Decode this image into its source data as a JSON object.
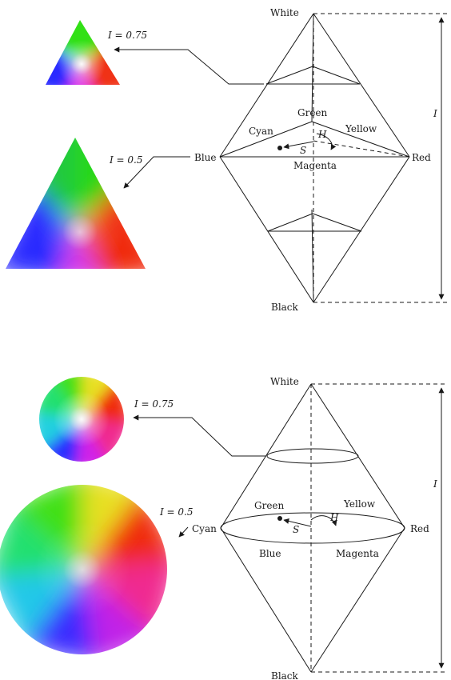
{
  "top_diagram": {
    "vertex_labels": {
      "white": "White",
      "black": "Black",
      "green": "Green",
      "cyan": "Cyan",
      "yellow": "Yellow",
      "blue": "Blue",
      "red": "Red",
      "magenta": "Magenta"
    },
    "angle_labels": {
      "hue": "H",
      "saturation": "S"
    },
    "axis_label": "I",
    "slice_labels": {
      "upper": "I = 0.75",
      "middle": "I = 0.5"
    }
  },
  "bottom_diagram": {
    "vertex_labels": {
      "white": "White",
      "black": "Black",
      "green": "Green",
      "yellow": "Yellow",
      "cyan": "Cyan",
      "red": "Red",
      "blue": "Blue",
      "magenta": "Magenta"
    },
    "angle_labels": {
      "hue": "H",
      "saturation": "S"
    },
    "axis_label": "I",
    "slice_labels": {
      "upper": "I = 0.75",
      "middle": "I = 0.5"
    }
  },
  "colors": {
    "red": "#ff2a10",
    "green": "#3de01a",
    "blue": "#2a2aff",
    "yellow": "#f0e020",
    "cyan": "#20e0d8",
    "magenta": "#e020e8",
    "white": "#ffffff",
    "ink": "#1a1a1a"
  }
}
